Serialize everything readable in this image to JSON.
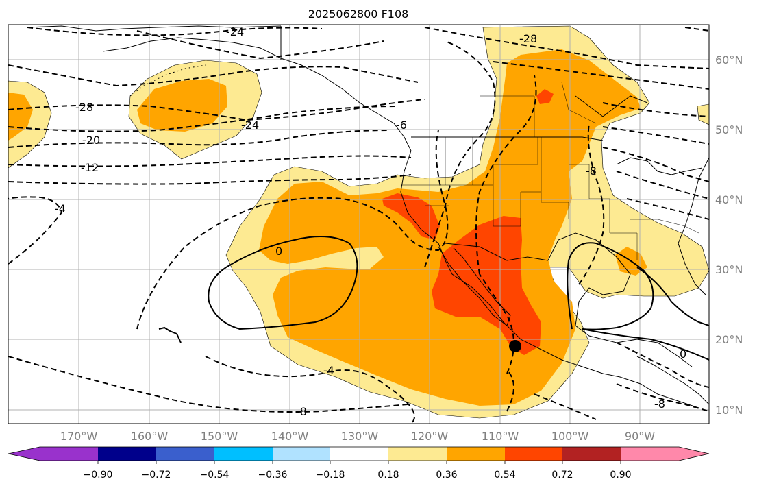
{
  "title": "2025062800 F108",
  "map": {
    "lat_labels": [
      "60°N",
      "50°N",
      "40°N",
      "30°N",
      "20°N",
      "10°N"
    ],
    "lon_labels": [
      "170°W",
      "160°W",
      "150°W",
      "140°W",
      "130°W",
      "120°W",
      "110°W",
      "100°W",
      "90°W"
    ],
    "contour_labels": [
      "-24",
      "-28",
      "-28",
      "-24",
      "-20",
      "-12",
      "-6",
      "-8",
      "-4",
      "0",
      "-4",
      "-8",
      "0",
      "-8"
    ],
    "fill_colors": {
      "light_yellow": "#fdea92",
      "orange": "#ffa500",
      "red_orange": "#ff4500",
      "ocean": "#ffffff",
      "gridline": "#b0b0b0"
    },
    "marker": "black-dot"
  },
  "colorbar": {
    "colors": [
      "#9932cc",
      "#00008b",
      "#3a5fcd",
      "#00bfff",
      "#b0e2ff",
      "#ffffff",
      "#fdea92",
      "#ffa500",
      "#ff4500",
      "#b22222",
      "#ff88aa"
    ],
    "tick_labels": [
      "−0.90",
      "−0.72",
      "−0.54",
      "−0.36",
      "−0.18",
      "0.18",
      "0.36",
      "0.54",
      "0.72",
      "0.90"
    ]
  }
}
